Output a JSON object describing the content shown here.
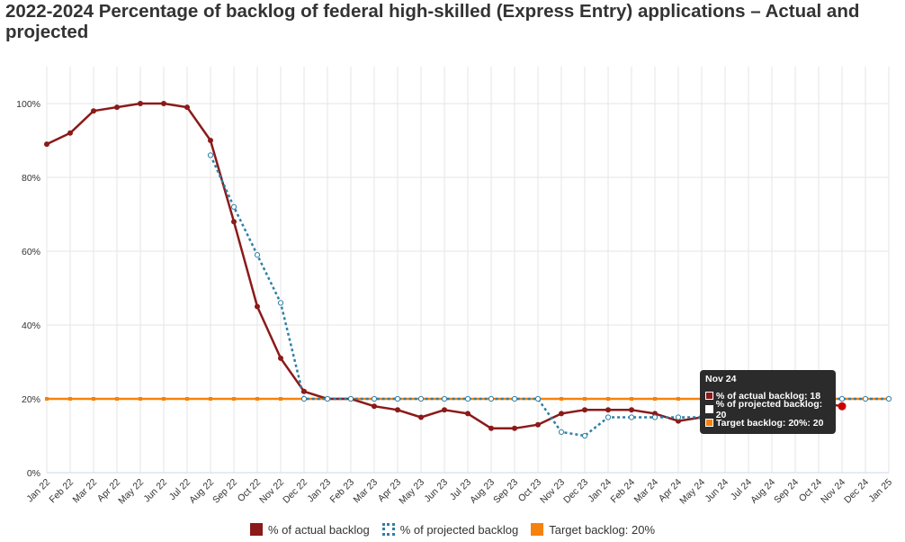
{
  "chart_data": {
    "type": "line",
    "title": "2022-2024 Percentage of backlog of federal high-skilled (Express Entry) applications – Actual and projected",
    "categories": [
      "Jan 22",
      "Feb 22",
      "Mar 22",
      "Apr 22",
      "May 22",
      "Jun 22",
      "Jul 22",
      "Aug 22",
      "Sep 22",
      "Oct 22",
      "Nov 22",
      "Dec 22",
      "Jan 23",
      "Feb 23",
      "Mar 23",
      "Apr 23",
      "May 23",
      "Jun 23",
      "Jul 23",
      "Aug 23",
      "Sep 23",
      "Oct 23",
      "Nov 23",
      "Dec 23",
      "Jan 24",
      "Feb 24",
      "Mar 24",
      "Apr 24",
      "May 24",
      "Jun 24",
      "Jul 24",
      "Aug 24",
      "Sep 24",
      "Oct 24",
      "Nov 24",
      "Dec 24",
      "Jan 25"
    ],
    "ylim": [
      0,
      110
    ],
    "yticks": [
      0,
      20,
      40,
      60,
      80,
      100
    ],
    "ytick_labels": [
      "0%",
      "20%",
      "40%",
      "60%",
      "80%",
      "100%"
    ],
    "grid": true,
    "legend_position": "bottom",
    "series": [
      {
        "name": "% of actual backlog",
        "color": "#8b1a1a",
        "style": "solid",
        "values": [
          89,
          92,
          98,
          99,
          100,
          100,
          99,
          90,
          68,
          45,
          31,
          22,
          20,
          20,
          18,
          17,
          15,
          17,
          16,
          12,
          12,
          13,
          16,
          17,
          17,
          17,
          16,
          14,
          15,
          16,
          16,
          17,
          18,
          19,
          18,
          null,
          null
        ]
      },
      {
        "name": "% of projected backlog",
        "color": "#2e7fa6",
        "style": "dotted",
        "values": [
          null,
          null,
          null,
          null,
          null,
          null,
          null,
          86,
          72,
          59,
          46,
          20,
          20,
          20,
          20,
          20,
          20,
          20,
          20,
          20,
          20,
          20,
          11,
          10,
          15,
          15,
          15,
          15,
          15,
          20,
          20,
          20,
          20,
          20,
          20,
          20,
          20
        ]
      },
      {
        "name": "Target backlog: 20%",
        "color": "#f5820d",
        "style": "solid",
        "values": [
          20,
          20,
          20,
          20,
          20,
          20,
          20,
          20,
          20,
          20,
          20,
          20,
          20,
          20,
          20,
          20,
          20,
          20,
          20,
          20,
          20,
          20,
          20,
          20,
          20,
          20,
          20,
          20,
          20,
          20,
          20,
          20,
          20,
          20,
          20,
          20,
          20
        ]
      }
    ],
    "tooltip": {
      "title": "Nov 24",
      "rows": [
        {
          "label": "% of actual backlog: 18",
          "color": "#8b1a1a"
        },
        {
          "label": "% of projected backlog: 20",
          "color": "#ffffff"
        },
        {
          "label": "Target backlog: 20%: 20",
          "color": "#f5820d"
        }
      ]
    }
  }
}
